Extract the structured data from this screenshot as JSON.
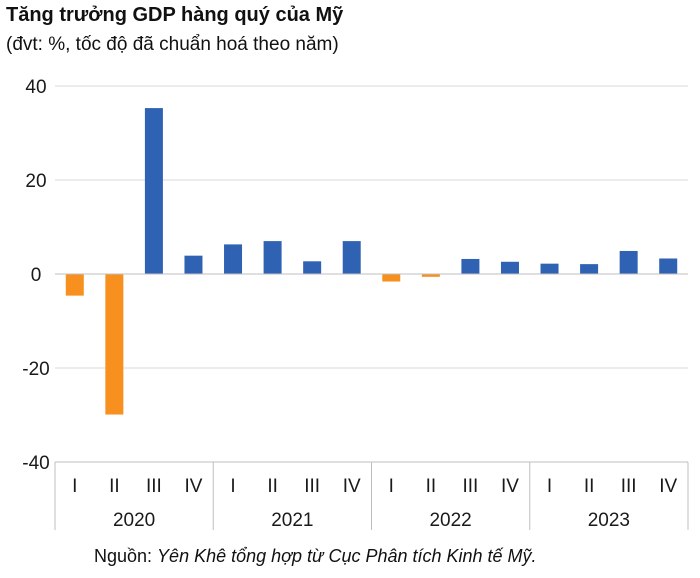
{
  "chart_data": {
    "type": "bar",
    "title": "Tăng trưởng GDP hàng quý của Mỹ",
    "subtitle": "(đvt: %, tốc độ đã chuẩn hoá theo năm)",
    "xlabel": "",
    "ylabel": "",
    "ylim": [
      -40,
      40
    ],
    "yticks": [
      40,
      20,
      0,
      -20,
      -40
    ],
    "yticklabels": [
      "40",
      "20",
      "0",
      "-20",
      "-40"
    ],
    "grid": true,
    "categories": [
      "I",
      "II",
      "III",
      "IV",
      "I",
      "II",
      "III",
      "IV",
      "I",
      "II",
      "III",
      "IV",
      "I",
      "II",
      "III",
      "IV"
    ],
    "years": [
      "2020",
      "2021",
      "2022",
      "2023"
    ],
    "values": [
      -4.6,
      -29.9,
      35.3,
      3.9,
      6.3,
      7.0,
      2.7,
      7.0,
      -1.6,
      -0.6,
      3.2,
      2.6,
      2.2,
      2.1,
      4.9,
      3.3
    ],
    "colors": {
      "positive": "#2f62b3",
      "negative": "#f7901e",
      "grid": "#d9d9d9",
      "axis": "#bfbfbf"
    }
  },
  "source": {
    "prefix": "Nguồn: ",
    "text": "Yên Khê tổng hợp từ Cục Phân tích Kinh tế Mỹ."
  }
}
